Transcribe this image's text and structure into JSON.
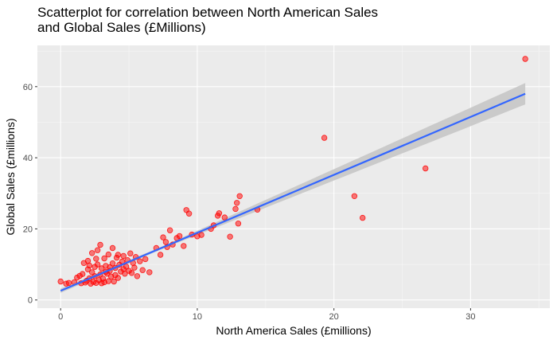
{
  "chart_data": {
    "type": "scatter",
    "title": "Scatterplot for correlation between North American Sales\nand Global Sales (£Millions)",
    "xlabel": "North America Sales (£millions)",
    "ylabel": "Global Sales (£millions)",
    "xlim": [
      -1.7,
      35.8
    ],
    "ylim": [
      -2.3,
      71.6
    ],
    "xticks": [
      0,
      10,
      20,
      30
    ],
    "yticks": [
      0,
      20,
      40,
      60
    ],
    "grid": true,
    "point_color": "#ff0000",
    "line_color": "#3366ff",
    "band_color": "#c6c6c6",
    "panel_background": "#ebebeb",
    "trend": {
      "method": "linear fit with confidence band",
      "x": [
        0,
        34
      ],
      "y": [
        2.6,
        58.0
      ],
      "band_halfwidth": [
        0.6,
        3.0
      ]
    },
    "points": [
      [
        0.0,
        5.2
      ],
      [
        0.4,
        4.6
      ],
      [
        0.6,
        4.8
      ],
      [
        1.0,
        5.0
      ],
      [
        1.2,
        6.3
      ],
      [
        1.4,
        6.8
      ],
      [
        1.5,
        4.7
      ],
      [
        1.6,
        7.3
      ],
      [
        1.7,
        10.4
      ],
      [
        1.8,
        4.9
      ],
      [
        1.9,
        5.4
      ],
      [
        2.0,
        11.0
      ],
      [
        2.0,
        8.6
      ],
      [
        2.1,
        6.1
      ],
      [
        2.2,
        4.6
      ],
      [
        2.3,
        7.8
      ],
      [
        2.3,
        13.2
      ],
      [
        2.4,
        5.1
      ],
      [
        2.5,
        9.3
      ],
      [
        2.5,
        6.7
      ],
      [
        2.6,
        4.8
      ],
      [
        2.7,
        10.0
      ],
      [
        2.7,
        14.0
      ],
      [
        2.8,
        5.6
      ],
      [
        2.9,
        7.2
      ],
      [
        2.9,
        15.5
      ],
      [
        3.0,
        4.7
      ],
      [
        3.0,
        8.9
      ],
      [
        3.1,
        6.0
      ],
      [
        3.2,
        11.7
      ],
      [
        3.2,
        5.0
      ],
      [
        3.3,
        9.6
      ],
      [
        3.4,
        7.4
      ],
      [
        3.5,
        12.8
      ],
      [
        3.5,
        5.3
      ],
      [
        3.6,
        8.2
      ],
      [
        3.7,
        6.6
      ],
      [
        3.8,
        14.6
      ],
      [
        3.8,
        10.3
      ],
      [
        3.9,
        5.2
      ],
      [
        4.0,
        9.0
      ],
      [
        4.0,
        7.0
      ],
      [
        4.1,
        11.9
      ],
      [
        4.2,
        6.2
      ],
      [
        4.3,
        9.9
      ],
      [
        4.4,
        8.0
      ],
      [
        4.5,
        10.8
      ],
      [
        4.6,
        12.4
      ],
      [
        4.7,
        7.4
      ],
      [
        4.8,
        9.4
      ],
      [
        4.9,
        11.2
      ],
      [
        5.0,
        8.2
      ],
      [
        5.1,
        13.1
      ],
      [
        5.2,
        7.6
      ],
      [
        5.3,
        10.4
      ],
      [
        5.4,
        9.1
      ],
      [
        5.5,
        12.1
      ],
      [
        5.6,
        6.7
      ],
      [
        5.8,
        10.9
      ],
      [
        6.0,
        8.4
      ],
      [
        6.2,
        11.5
      ],
      [
        6.5,
        7.8
      ],
      [
        2.1,
        9.7
      ],
      [
        2.6,
        11.6
      ],
      [
        3.3,
        7.9
      ],
      [
        3.6,
        9.2
      ],
      [
        4.2,
        12.7
      ],
      [
        4.6,
        8.7
      ],
      [
        7.0,
        14.6
      ],
      [
        7.3,
        12.7
      ],
      [
        7.5,
        17.6
      ],
      [
        7.7,
        16.3
      ],
      [
        7.8,
        14.9
      ],
      [
        8.0,
        19.6
      ],
      [
        8.2,
        15.6
      ],
      [
        8.5,
        17.4
      ],
      [
        8.7,
        18.0
      ],
      [
        9.0,
        15.2
      ],
      [
        9.2,
        25.3
      ],
      [
        9.4,
        24.3
      ],
      [
        9.6,
        18.4
      ],
      [
        10.0,
        17.9
      ],
      [
        10.3,
        18.3
      ],
      [
        11.0,
        20.0
      ],
      [
        11.2,
        21.0
      ],
      [
        11.5,
        23.7
      ],
      [
        11.6,
        24.4
      ],
      [
        12.0,
        23.2
      ],
      [
        12.4,
        17.8
      ],
      [
        12.8,
        25.6
      ],
      [
        12.9,
        27.3
      ],
      [
        13.0,
        21.5
      ],
      [
        13.1,
        29.2
      ],
      [
        14.4,
        25.4
      ],
      [
        19.3,
        45.6
      ],
      [
        21.5,
        29.2
      ],
      [
        22.1,
        23.1
      ],
      [
        26.7,
        37.0
      ],
      [
        34.0,
        67.8
      ]
    ]
  }
}
